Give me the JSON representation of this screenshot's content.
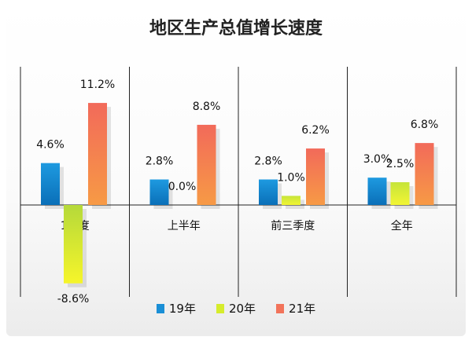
{
  "chart_data": {
    "type": "bar",
    "title": "地区生产总值增长速度",
    "categories": [
      "1季度",
      "上半年",
      "前三季度",
      "全年"
    ],
    "series": [
      {
        "name": "19年",
        "values": [
          4.6,
          2.8,
          2.8,
          3.0
        ],
        "labels": [
          "4.6%",
          "2.8%",
          "2.8%",
          "3.0%"
        ],
        "color": "#1a8fd6"
      },
      {
        "name": "20年",
        "values": [
          -8.6,
          0.0,
          1.0,
          2.5
        ],
        "labels": [
          "-8.6%",
          "0.0%",
          "1.0%",
          "2.5%"
        ],
        "color": "#c8e01e"
      },
      {
        "name": "21年",
        "values": [
          11.2,
          8.8,
          6.2,
          6.8
        ],
        "labels": [
          "11.2%",
          "8.8%",
          "6.2%",
          "6.8%"
        ],
        "color": "#f2735a"
      }
    ],
    "ylim": [
      -10,
      12
    ],
    "grid": false,
    "legend_position": "bottom"
  }
}
